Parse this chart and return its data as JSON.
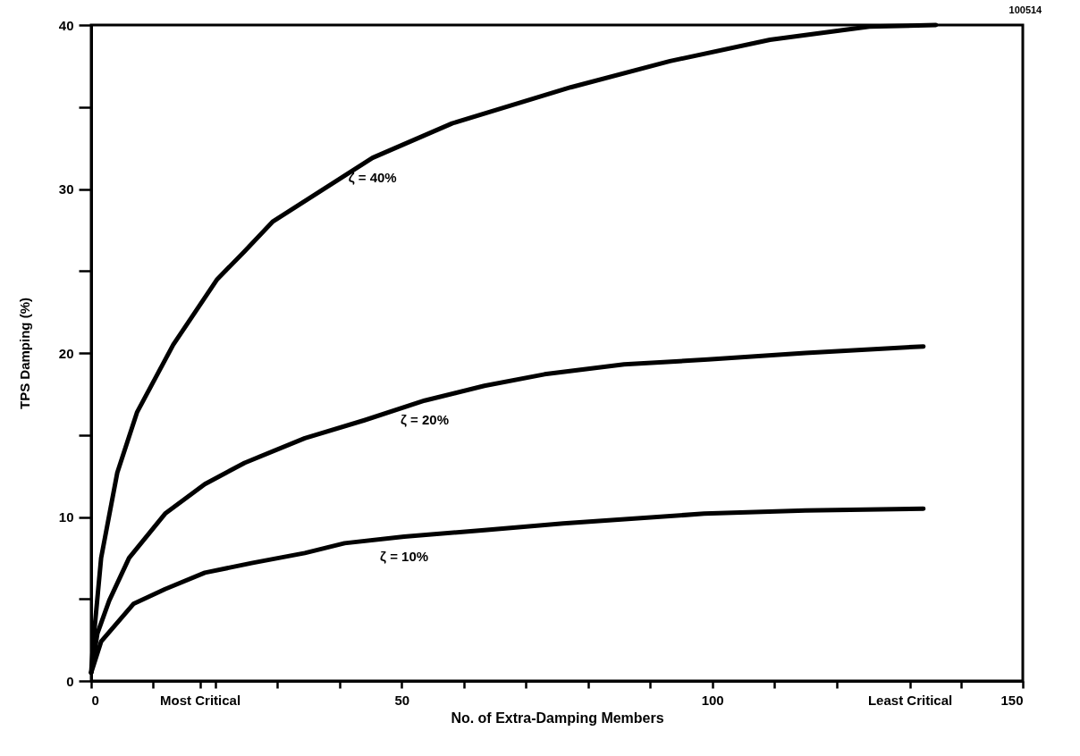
{
  "chart_data": {
    "type": "line",
    "xlabel": "No. of Extra-Damping Members",
    "ylabel": "TPS Damping (%)",
    "annotations": [
      "100514"
    ],
    "xlim": [
      0,
      150
    ],
    "ylim": [
      0,
      40
    ],
    "xticks": [
      0,
      {
        "value": 10,
        "label": null
      },
      {
        "value": 17.5,
        "label": "Most Critical"
      },
      {
        "value": 20,
        "label": null
      },
      {
        "value": 30,
        "label": null
      },
      {
        "value": 40,
        "label": null
      },
      50,
      {
        "value": 60,
        "label": null
      },
      {
        "value": 70,
        "label": null
      },
      {
        "value": 80,
        "label": null
      },
      {
        "value": 90,
        "label": null
      },
      100,
      {
        "value": 110,
        "label": null
      },
      {
        "value": 120,
        "label": null
      },
      {
        "value": 131.8,
        "label": "Least Critical"
      },
      {
        "value": 140,
        "label": null
      },
      150
    ],
    "yticks": [
      0,
      {
        "value": 5,
        "label": null
      },
      10,
      {
        "value": 15,
        "label": null
      },
      20,
      {
        "value": 25,
        "label": null
      },
      30,
      {
        "value": 35,
        "label": null
      },
      40
    ],
    "grid": false,
    "legend": false,
    "marker": "none",
    "line_style": "solid",
    "series": [
      {
        "name": "ζ = 40%",
        "color": "#000000",
        "x": [
          0,
          0.3,
          1.6,
          4.2,
          7.4,
          13.2,
          20.3,
          24.7,
          29.2,
          45.3,
          58.1,
          77.2,
          93.2,
          109.3,
          125.3,
          136
        ],
        "values": [
          0.5,
          2.2,
          7.5,
          12.7,
          16.4,
          20.5,
          24.5,
          26.2,
          28.0,
          31.9,
          34.0,
          36.2,
          37.8,
          39.1,
          39.9,
          40
        ]
      },
      {
        "name": "ζ = 20%",
        "color": "#000000",
        "x": [
          0,
          1,
          2.9,
          6.1,
          11.9,
          18.3,
          24.7,
          34.4,
          44,
          53.7,
          63.3,
          73,
          85.8,
          99.3,
          115,
          134
        ],
        "values": [
          0.5,
          2.9,
          4.9,
          7.5,
          10.2,
          12.0,
          13.3,
          14.8,
          15.9,
          17.1,
          18.0,
          18.7,
          19.3,
          19.6,
          20.0,
          20.4
        ]
      },
      {
        "name": "ζ = 10%",
        "color": "#000000",
        "x": [
          0,
          1.6,
          6.8,
          11.9,
          18.3,
          26,
          34.4,
          40.8,
          50.4,
          63.3,
          76,
          98.7,
          115,
          134
        ],
        "values": [
          0.5,
          2.4,
          4.7,
          5.6,
          6.6,
          7.2,
          7.8,
          8.4,
          8.8,
          9.2,
          9.6,
          10.2,
          10.4,
          10.5
        ]
      }
    ]
  }
}
